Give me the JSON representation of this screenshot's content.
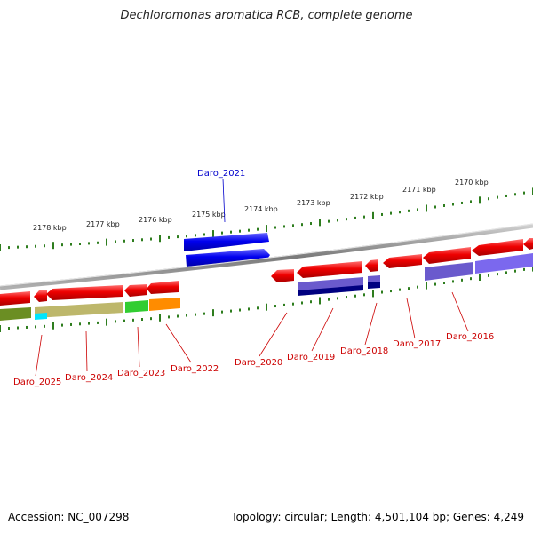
{
  "title": "Dechloromonas aromatica RCB, complete genome",
  "footer": {
    "accession": "Accession: NC_007298",
    "summary": "Topology: circular; Length: 4,501,104 bp; Genes: 4,249"
  },
  "colors": {
    "backbone": "#8a8a8a",
    "ticks": "#2e7d1e",
    "label_red": "#cc0000",
    "label_blue": "#0000cc",
    "gene_red": "#ee0000",
    "gene_blue": "#0000ee",
    "feature_purple": "#6a5acd",
    "feature_navy": "#000080",
    "feature_olive": "#6b8e23",
    "feature_khaki": "#bdb76b",
    "feature_green": "#32cd32",
    "feature_orange": "#ff8c00",
    "feature_cyan": "#00e5ff"
  },
  "kbp_markers": [
    "2178 kbp",
    "2177 kbp",
    "2176 kbp",
    "2175 kbp",
    "2174 kbp",
    "2173 kbp",
    "2172 kbp",
    "2171 kbp",
    "2170 kbp"
  ],
  "gene_labels": [
    {
      "text": "Daro_2021",
      "color": "blue"
    },
    {
      "text": "Daro_2025",
      "color": "red"
    },
    {
      "text": "Daro_2024",
      "color": "red"
    },
    {
      "text": "Daro_2023",
      "color": "red"
    },
    {
      "text": "Daro_2022",
      "color": "red"
    },
    {
      "text": "Daro_2020",
      "color": "red"
    },
    {
      "text": "Daro_2019",
      "color": "red"
    },
    {
      "text": "Daro_2018",
      "color": "red"
    },
    {
      "text": "Daro_2017",
      "color": "red"
    },
    {
      "text": "Daro_2016",
      "color": "red"
    }
  ]
}
